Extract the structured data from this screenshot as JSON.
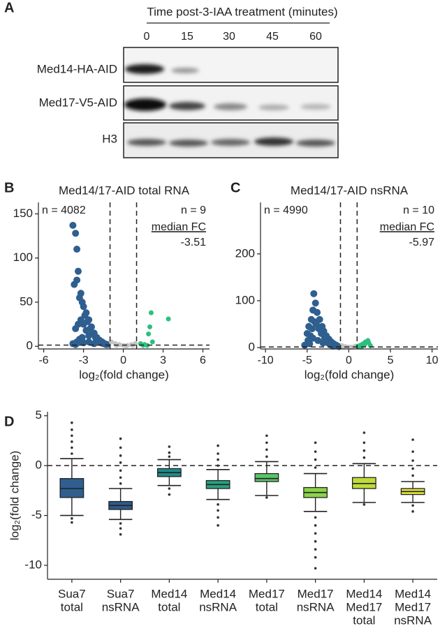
{
  "blot": {
    "panel": "A",
    "title": "Time post-3-IAA treatment (minutes)",
    "timepoints": [
      "0",
      "15",
      "30",
      "45",
      "60"
    ],
    "rows": [
      "Med14-HA-AID",
      "Med17-V5-AID",
      "H3"
    ]
  },
  "chart_data": [
    {
      "type": "scatter",
      "panel": "B",
      "title": "Med14/17-AID total RNA",
      "x_label": "log₂(fold change)",
      "xlim": [
        -6.4,
        6.5
      ],
      "xticks": [
        -6,
        -3,
        0,
        3,
        6
      ],
      "ylim": [
        -3,
        163
      ],
      "yticks": [
        0,
        50,
        100,
        150
      ],
      "vlines": [
        -1,
        1
      ],
      "hline": 1.3,
      "annotations": [
        "n = 4082",
        "n = 9",
        "median FC",
        "-3.51"
      ],
      "series": [
        {
          "color": "#2f5f8f",
          "x": [
            -3.8,
            -3.6,
            -3.5,
            -3.4,
            -3.2,
            -3.0,
            -2.8,
            -2.6,
            -2.4,
            -2.2,
            -2.0,
            -1.8,
            -1.6,
            -1.4,
            -1.2,
            -3.7,
            -3.5,
            -3.3,
            -3.1,
            -2.9,
            -2.7,
            -2.5,
            -2.3,
            -2.1,
            -1.9,
            -1.7,
            -1.5,
            -1.3,
            -3.6,
            -3.4,
            -3.2,
            -3.0,
            -2.8,
            -2.6,
            -3.5,
            -3.3,
            -3.1,
            -3.8,
            -3.6,
            -3.4,
            -2.2,
            -2.6,
            -3.0
          ],
          "y": [
            137,
            128,
            110,
            85,
            60,
            45,
            38,
            30,
            22,
            15,
            10,
            7,
            5,
            3,
            2,
            70,
            75,
            55,
            50,
            35,
            28,
            20,
            15,
            10,
            6,
            4,
            3,
            2,
            20,
            25,
            30,
            25,
            18,
            12,
            5,
            8,
            10,
            3,
            2,
            4,
            3,
            5,
            4
          ]
        },
        {
          "color": "#c4c4c4",
          "x": [
            -0.9,
            -0.6,
            -0.3,
            0,
            0.3,
            0.6,
            0.9,
            -0.5,
            0.2,
            0.7
          ],
          "y": [
            5,
            3,
            2,
            1,
            1,
            2,
            3,
            1,
            0.5,
            1
          ]
        },
        {
          "color": "#2dbf7f",
          "x": [
            1.3,
            1.6,
            1.9,
            2.0,
            2.1,
            1.5,
            3.4,
            1.8,
            2.2
          ],
          "y": [
            3,
            2,
            14,
            22,
            38,
            1,
            31,
            1,
            5
          ]
        }
      ]
    },
    {
      "type": "scatter",
      "panel": "C",
      "title": "Med14/17-AID nsRNA",
      "x_label": "log₂(fold change)",
      "xlim": [
        -10.6,
        10.7
      ],
      "xticks": [
        -10,
        -5,
        0,
        5,
        10
      ],
      "ylim": [
        -3,
        310
      ],
      "yticks": [
        0,
        100,
        200
      ],
      "vlines": [
        -1,
        1
      ],
      "hline": 1.3,
      "annotations": [
        "n = 4990",
        "n = 10",
        "median FC",
        "-5.97"
      ],
      "series": [
        {
          "color": "#2f5f8f",
          "x": [
            -5.0,
            -4.8,
            -4.5,
            -4.3,
            -4.2,
            -4.0,
            -3.8,
            -3.5,
            -3.2,
            -3.0,
            -2.7,
            -2.4,
            -2.1,
            -1.8,
            -1.5,
            -1.2,
            -5.3,
            -4.9,
            -4.6,
            -4.4,
            -4.1,
            -3.9,
            -3.6,
            -3.3,
            -2.9,
            -2.5,
            -2.2,
            -1.9,
            -4.7,
            -4.3,
            -3.7,
            -3.1
          ],
          "y": [
            30,
            45,
            60,
            80,
            115,
            95,
            75,
            60,
            45,
            35,
            25,
            18,
            12,
            8,
            5,
            2,
            5,
            15,
            25,
            40,
            55,
            50,
            40,
            30,
            20,
            10,
            6,
            3,
            8,
            20,
            15,
            10
          ]
        },
        {
          "color": "#c4c4c4",
          "x": [
            -0.8,
            -0.4,
            0,
            0.4,
            0.8,
            -0.6,
            0.2
          ],
          "y": [
            4,
            2,
            1,
            1,
            3,
            1,
            0.5
          ]
        },
        {
          "color": "#2dbf7f",
          "x": [
            1.2,
            1.4,
            1.7,
            2.0,
            2.3,
            2.4,
            1.5,
            1.1,
            1.9,
            2.6
          ],
          "y": [
            2,
            5,
            8,
            12,
            15,
            10,
            1,
            3,
            6,
            4
          ]
        }
      ]
    },
    {
      "type": "box",
      "panel": "D",
      "y_label": "log₂(fold change)",
      "ylim": [
        -11.4,
        5.4
      ],
      "yticks": [
        -10,
        -5,
        0,
        5
      ],
      "hline": 0,
      "categories": [
        [
          "Sua7",
          "total"
        ],
        [
          "Sua7",
          "nsRNA"
        ],
        [
          "Med14",
          "total"
        ],
        [
          "Med14",
          "nsRNA"
        ],
        [
          "Med17",
          "total"
        ],
        [
          "Med17",
          "nsRNA"
        ],
        [
          "Med14",
          "Med17",
          "total"
        ],
        [
          "Med14",
          "Med17",
          "nsRNA"
        ]
      ],
      "boxes": [
        {
          "color": "#2f5f8f",
          "whislo": -5,
          "q1": -3.2,
          "med": -2.3,
          "q3": -1.3,
          "whishi": 0.7,
          "outliers": [
            1.2,
            1.8,
            2.4,
            3.0,
            3.6,
            4.3,
            -5.3,
            -5.7
          ]
        },
        {
          "color": "#2d5a8a",
          "whislo": -5.4,
          "q1": -4.4,
          "med": -4.0,
          "q3": -3.6,
          "whishi": -2.3,
          "outliers": [
            -1.8,
            -1.2,
            -0.5,
            0.3,
            1.0,
            1.8,
            2.7,
            -5.8,
            -6.3,
            -6.9
          ]
        },
        {
          "color": "#1f8a8a",
          "whislo": -2.0,
          "q1": -1.1,
          "med": -0.7,
          "q3": -0.3,
          "whishi": 0.6,
          "outliers": [
            0.9,
            1.3,
            1.9,
            -2.3,
            -2.9
          ]
        },
        {
          "color": "#27a07f",
          "whislo": -3.4,
          "q1": -2.3,
          "med": -1.9,
          "q3": -1.5,
          "whishi": -0.4,
          "outliers": [
            0.0,
            0.6,
            1.2,
            2.0,
            -3.9,
            -4.5,
            -5.2,
            -6.0
          ]
        },
        {
          "color": "#5cc36a",
          "whislo": -3.0,
          "q1": -1.6,
          "med": -1.3,
          "q3": -0.8,
          "whishi": 0.4,
          "outliers": [
            0.9,
            1.6,
            2.3,
            3.0,
            -3.2
          ]
        },
        {
          "color": "#8bd44a",
          "whislo": -4.6,
          "q1": -3.2,
          "med": -2.7,
          "q3": -2.2,
          "whishi": -0.8,
          "outliers": [
            -0.2,
            0.6,
            1.4,
            2.3,
            -5.2,
            -6.0,
            -6.8,
            -7.6,
            -8.4,
            -9.2,
            -10.3
          ]
        },
        {
          "color": "#c0dc3a",
          "whislo": -3.7,
          "q1": -2.3,
          "med": -1.8,
          "q3": -1.2,
          "whishi": 0.2,
          "outliers": [
            0.8,
            1.5,
            2.3,
            3.3,
            -3.9
          ]
        },
        {
          "color": "#e0e43a",
          "whislo": -3.7,
          "q1": -2.9,
          "med": -2.6,
          "q3": -2.3,
          "whishi": -1.6,
          "outliers": [
            -1.0,
            -0.3,
            0.5,
            1.4,
            2.6,
            -4.0,
            -4.6
          ]
        }
      ]
    }
  ]
}
